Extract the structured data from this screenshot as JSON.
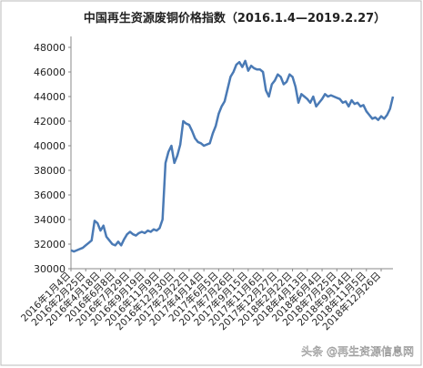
{
  "chart_data": {
    "type": "line",
    "title": "中国再生资源废铜价格指数（2016.1.4—2019.2.27）",
    "watermark": "头条 @再生资源信息网",
    "categories": [
      "2016年1月4日",
      null,
      null,
      null,
      null,
      "2016年2月25日",
      null,
      null,
      null,
      null,
      "2016年4月18日",
      null,
      null,
      null,
      null,
      "2016年6月8日",
      null,
      null,
      null,
      null,
      "2016年7月29日",
      null,
      null,
      null,
      null,
      "2016年9月19日",
      null,
      null,
      null,
      null,
      "2016年11月9日",
      null,
      null,
      null,
      null,
      "2016年12月30日",
      null,
      null,
      null,
      null,
      "2017年2月22日",
      null,
      null,
      null,
      null,
      "2017年4月14日",
      null,
      null,
      null,
      null,
      "2017年6月5日",
      null,
      null,
      null,
      null,
      "2017年7月26日",
      null,
      null,
      null,
      null,
      "2017年9月15日",
      null,
      null,
      null,
      null,
      "2017年11月6日",
      null,
      null,
      null,
      null,
      "2017年12月27日",
      null,
      null,
      null,
      null,
      "2018年2月22日",
      null,
      null,
      null,
      null,
      "2018年4月13日",
      null,
      null,
      null,
      null,
      "2018年6月4日",
      null,
      null,
      null,
      null,
      "2018年7月25日",
      null,
      null,
      null,
      null,
      "2018年9月14日",
      null,
      null,
      null,
      null,
      "2018年11月5日",
      null,
      null,
      null,
      null,
      "2018年12月26日",
      null,
      null,
      null,
      null
    ],
    "series": [
      {
        "name": "废铜价格指数",
        "color": "#4a7ab5",
        "values": [
          31500,
          31400,
          31500,
          31600,
          31700,
          31900,
          32100,
          32300,
          33900,
          33700,
          33100,
          33500,
          32600,
          32300,
          32000,
          31900,
          32200,
          31900,
          32400,
          32800,
          33000,
          32800,
          32700,
          32900,
          33000,
          32900,
          33100,
          33000,
          33200,
          33100,
          33300,
          34000,
          38600,
          39500,
          40000,
          38600,
          39200,
          40100,
          42000,
          41800,
          41700,
          41200,
          40600,
          40300,
          40200,
          40000,
          40100,
          40200,
          41000,
          41600,
          42600,
          43200,
          43600,
          44600,
          45600,
          46000,
          46600,
          46800,
          46400,
          46900,
          46100,
          46500,
          46300,
          46200,
          46200,
          46000,
          44500,
          44000,
          45000,
          45300,
          45800,
          45600,
          45000,
          45200,
          45800,
          45600,
          44800,
          43500,
          44200,
          44000,
          43800,
          43500,
          44000,
          43200,
          43500,
          43800,
          44200,
          44000,
          44100,
          44000,
          43900,
          43800,
          43500,
          43600,
          43200,
          43700,
          43400,
          43500,
          43200,
          43300,
          42800,
          42500,
          42200,
          42300,
          42100,
          42400,
          42200,
          42500,
          43000,
          44000
        ]
      }
    ],
    "ylim": [
      30000,
      48000
    ],
    "yticks": [
      30000,
      32000,
      34000,
      36000,
      38000,
      40000,
      42000,
      44000,
      46000,
      48000
    ],
    "grid": false
  }
}
